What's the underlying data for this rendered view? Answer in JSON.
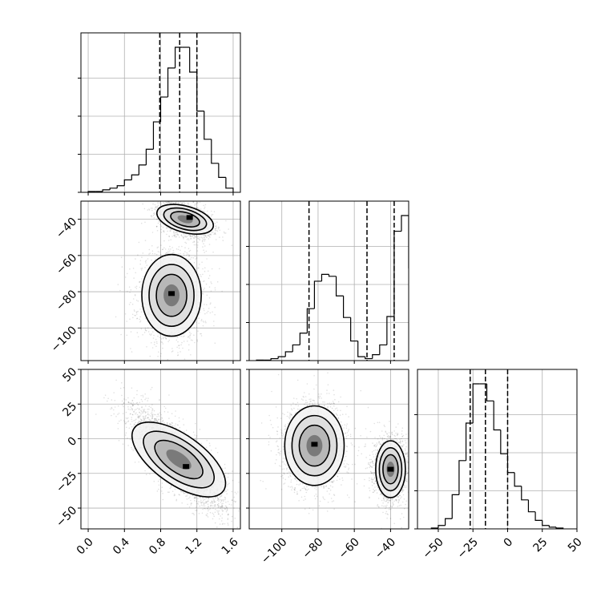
{
  "chart_data": {
    "type": "corner",
    "parameters": [
      "",
      "",
      ""
    ],
    "quantiles": [
      0.16,
      0.5,
      0.84
    ],
    "params": [
      {
        "range": [
          -0.08,
          1.68
        ],
        "ticks": [
          0.0,
          0.4,
          0.8,
          1.2,
          1.6
        ],
        "tick_labels": [
          "0.0",
          "0.4",
          "0.8",
          "1.2",
          "1.6"
        ]
      },
      {
        "range": [
          -118,
          -30
        ],
        "ticks": [
          -100,
          -80,
          -60,
          -40
        ],
        "tick_labels": [
          "−100",
          "−80",
          "−60",
          "−40"
        ]
      },
      {
        "range": [
          -65,
          50
        ],
        "ticks": [
          -50,
          -25,
          0,
          25,
          50
        ],
        "tick_labels": [
          "−50",
          "−25",
          "0",
          "25",
          "50"
        ]
      }
    ],
    "hist1d": [
      {
        "bins": [
          0.0,
          0.08,
          0.16,
          0.24,
          0.32,
          0.4,
          0.48,
          0.56,
          0.64,
          0.72,
          0.8,
          0.88,
          0.96,
          1.04,
          1.12,
          1.2,
          1.28,
          1.36,
          1.44,
          1.52,
          1.6
        ],
        "counts": [
          1,
          1,
          3,
          5,
          8,
          15,
          21,
          33,
          52,
          85,
          115,
          150,
          175,
          175,
          145,
          98,
          64,
          35,
          18,
          5
        ],
        "quantile_values": [
          0.79,
          1.01,
          1.2
        ]
      },
      {
        "bins": [
          -114,
          -110,
          -106,
          -102,
          -98,
          -94,
          -90,
          -86,
          -82,
          -78,
          -74,
          -70,
          -66,
          -62,
          -58,
          -54,
          -50,
          -46,
          -42,
          -38,
          -34,
          -30
        ],
        "counts": [
          0.5,
          0.5,
          2,
          4,
          9,
          16,
          28,
          53,
          81,
          88,
          86,
          66,
          44,
          20,
          4,
          2,
          6,
          16,
          45,
          132,
          148,
          94
        ],
        "quantile_values": [
          -85,
          -53,
          -38
        ]
      },
      {
        "bins": [
          -55,
          -50,
          -45,
          -40,
          -35,
          -30,
          -25,
          -20,
          -15,
          -10,
          -5,
          0,
          5,
          10,
          15,
          20,
          25,
          30,
          35,
          40
        ],
        "counts": [
          0.5,
          2,
          6,
          20,
          40,
          62,
          85,
          85,
          75,
          58,
          44,
          33,
          25,
          17,
          10,
          5,
          2,
          1,
          0.5
        ],
        "quantile_values": [
          -27,
          -16,
          0
        ]
      }
    ],
    "hist2d": [
      {
        "x": 0,
        "y": 1,
        "blobs": [
          {
            "cx": 1.07,
            "cy": -40,
            "sx": 0.13,
            "sy": 4.5,
            "rho": -0.45,
            "n": 1900,
            "peak": [
              1.12,
              -39
            ]
          },
          {
            "cx": 0.92,
            "cy": -82,
            "sx": 0.16,
            "sy": 11,
            "rho": 0.0,
            "n": 1700,
            "peak": [
              0.92,
              -81
            ]
          }
        ]
      },
      {
        "x": 0,
        "y": 2,
        "blobs": [
          {
            "cx": 1.0,
            "cy": -15,
            "sx": 0.22,
            "sy": 15,
            "rho": -0.78,
            "n": 3600,
            "peak": [
              1.08,
              -20
            ]
          }
        ]
      },
      {
        "x": 1,
        "y": 2,
        "blobs": [
          {
            "cx": -82,
            "cy": -5,
            "sx": 8,
            "sy": 14,
            "rho": 0.0,
            "n": 1800,
            "peak": [
              -82,
              -4
            ]
          },
          {
            "cx": -40,
            "cy": -22,
            "sx": 4,
            "sy": 10,
            "rho": 0.0,
            "n": 1900,
            "peak": [
              -40,
              -22
            ]
          }
        ]
      }
    ],
    "grid": true,
    "legend": "none"
  }
}
